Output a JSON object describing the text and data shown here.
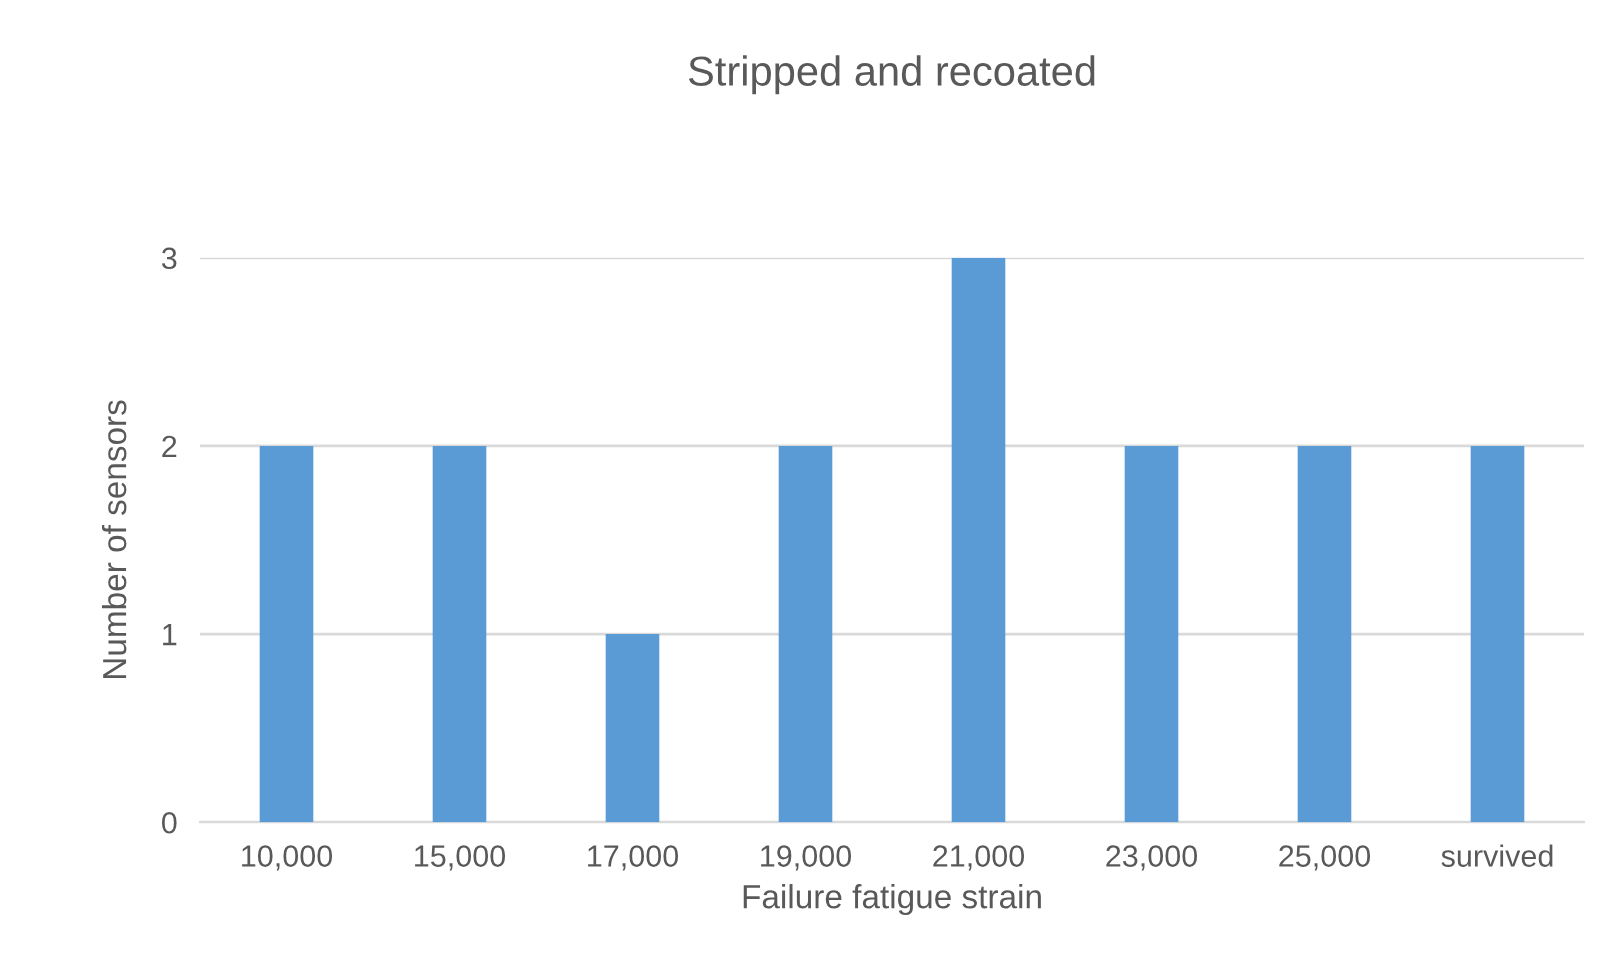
{
  "chart_data": {
    "type": "bar",
    "title": "Stripped and recoated",
    "xlabel": "Failure fatigue strain",
    "ylabel": "Number of sensors",
    "categories": [
      "10,000",
      "15,000",
      "17,000",
      "19,000",
      "21,000",
      "23,000",
      "25,000",
      "survived"
    ],
    "values": [
      2,
      2,
      1,
      2,
      3,
      2,
      2,
      2
    ],
    "color": "#5b9bd5",
    "ylim": [
      0,
      3
    ],
    "yticks": [
      0,
      1,
      2,
      3
    ],
    "grid": "y"
  }
}
